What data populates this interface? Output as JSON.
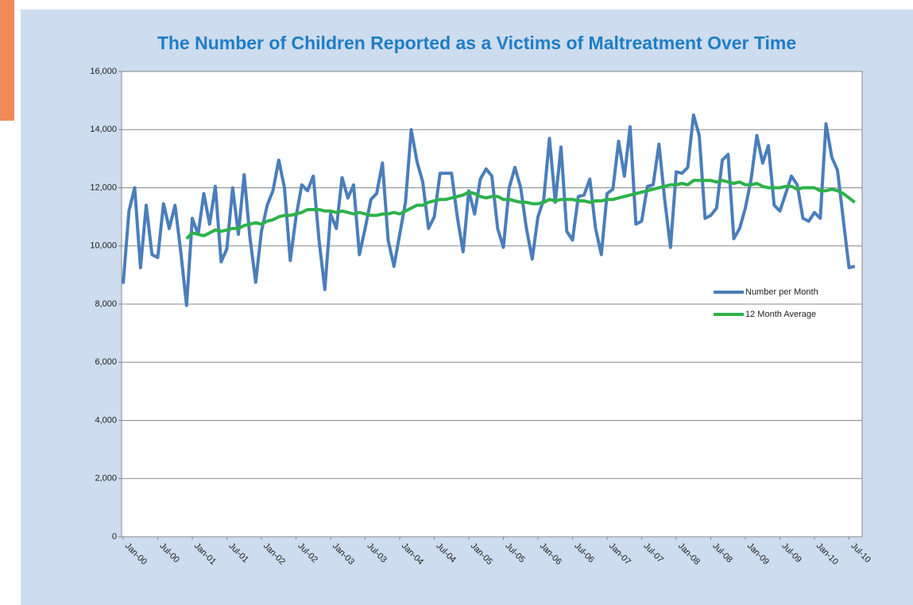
{
  "chart_data": {
    "type": "line",
    "title": "The Number of Children Reported as a Victims of Maltreatment Over Time",
    "categories": [
      "Jan-00",
      null,
      null,
      null,
      null,
      null,
      "Jul-00",
      null,
      null,
      null,
      null,
      null,
      "Jan-01",
      null,
      null,
      null,
      null,
      null,
      "Jul-01",
      null,
      null,
      null,
      null,
      null,
      "Jan-02",
      null,
      null,
      null,
      null,
      null,
      "Jul-02",
      null,
      null,
      null,
      null,
      null,
      "Jan-03",
      null,
      null,
      null,
      null,
      null,
      "Jul-03",
      null,
      null,
      null,
      null,
      null,
      "Jan-04",
      null,
      null,
      null,
      null,
      null,
      "Jul-04",
      null,
      null,
      null,
      null,
      null,
      "Jan-05",
      null,
      null,
      null,
      null,
      null,
      "Jul-05",
      null,
      null,
      null,
      null,
      null,
      "Jan-06",
      null,
      null,
      null,
      null,
      null,
      "Jul-06",
      null,
      null,
      null,
      null,
      null,
      "Jan-07",
      null,
      null,
      null,
      null,
      null,
      "Jul-07",
      null,
      null,
      null,
      null,
      null,
      "Jan-08",
      null,
      null,
      null,
      null,
      null,
      "Jul-08",
      null,
      null,
      null,
      null,
      null,
      "Jan-09",
      null,
      null,
      null,
      null,
      null,
      "Jul-09",
      null,
      null,
      null,
      null,
      null,
      "Jan-10",
      null,
      null,
      null,
      null,
      null,
      "Jul-10",
      null
    ],
    "series": [
      {
        "name": "Number per Month",
        "color": "#4a7ebb",
        "values": [
          8700,
          11200,
          12000,
          9250,
          11400,
          9700,
          9600,
          11450,
          10600,
          11400,
          9800,
          7950,
          10950,
          10400,
          11800,
          10750,
          12050,
          9450,
          9900,
          12000,
          10400,
          12450,
          10300,
          8750,
          10500,
          11400,
          11900,
          12950,
          12000,
          9500,
          11000,
          12100,
          11900,
          12400,
          10200,
          8500,
          11100,
          10600,
          12350,
          11650,
          12100,
          9700,
          10600,
          11600,
          11800,
          12850,
          10200,
          9300,
          10400,
          11500,
          14000,
          12900,
          12200,
          10600,
          11000,
          12500,
          12500,
          12500,
          11000,
          9800,
          11900,
          11100,
          12300,
          12650,
          12400,
          10600,
          9950,
          12000,
          12700,
          12000,
          10600,
          9550,
          11000,
          11600,
          13700,
          11500,
          13400,
          10500,
          10200,
          11700,
          11750,
          12300,
          10600,
          9700,
          11800,
          11950,
          13600,
          12400,
          14100,
          10750,
          10850,
          12050,
          12100,
          13500,
          11600,
          9950,
          12550,
          12500,
          12700,
          14500,
          13800,
          10950,
          11050,
          11300,
          12950,
          13150,
          10250,
          10600,
          11300,
          12300,
          13800,
          12850,
          13450,
          11400,
          11200,
          11800,
          12400,
          12100,
          10950,
          10850,
          11150,
          10950,
          14200,
          13050,
          12600,
          10900,
          9250,
          9300
        ]
      },
      {
        "name": "12 Month Average",
        "color": "#2db24a",
        "values": [
          null,
          null,
          null,
          null,
          null,
          null,
          null,
          null,
          null,
          null,
          null,
          10250,
          10450,
          10400,
          10350,
          10450,
          10550,
          10500,
          10550,
          10600,
          10600,
          10700,
          10750,
          10800,
          10750,
          10850,
          10900,
          11000,
          11050,
          11050,
          11100,
          11150,
          11250,
          11250,
          11250,
          11200,
          11200,
          11150,
          11200,
          11150,
          11100,
          11150,
          11100,
          11050,
          11050,
          11100,
          11100,
          11150,
          11100,
          11200,
          11300,
          11400,
          11400,
          11500,
          11550,
          11600,
          11600,
          11650,
          11700,
          11750,
          11850,
          11800,
          11700,
          11650,
          11700,
          11700,
          11600,
          11600,
          11550,
          11500,
          11500,
          11450,
          11450,
          11500,
          11600,
          11550,
          11600,
          11600,
          11600,
          11550,
          11550,
          11500,
          11550,
          11550,
          11600,
          11600,
          11650,
          11700,
          11750,
          11800,
          11850,
          11900,
          11950,
          12000,
          12050,
          12100,
          12100,
          12150,
          12100,
          12250,
          12250,
          12250,
          12250,
          12200,
          12250,
          12200,
          12150,
          12200,
          12100,
          12100,
          12150,
          12050,
          12000,
          12000,
          12000,
          12050,
          12050,
          11950,
          12000,
          12000,
          12000,
          11900,
          11900,
          11950,
          11900,
          11800,
          11650,
          11500
        ]
      }
    ],
    "ylim": [
      0,
      16000
    ],
    "yticks": [
      0,
      {
        "value": 2000,
        "label": "2,000"
      },
      {
        "value": 4000,
        "label": "4,000"
      },
      {
        "value": 6000,
        "label": "6,000"
      },
      {
        "value": 8000,
        "label": "8,000"
      },
      {
        "value": 10000,
        "label": "10,000"
      },
      {
        "value": 12000,
        "label": "12,000"
      },
      {
        "value": 14000,
        "label": "14,000"
      },
      {
        "value": 16000,
        "label": "16,000"
      }
    ],
    "grid": true,
    "legend": "right"
  }
}
